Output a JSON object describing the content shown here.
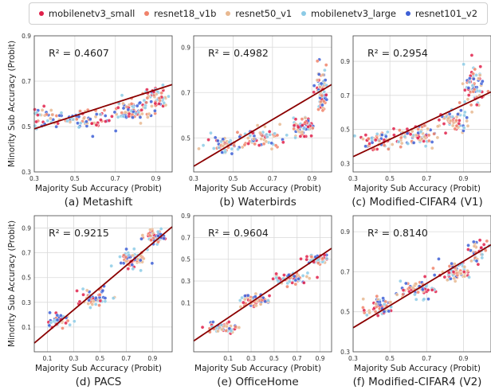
{
  "legend": [
    {
      "name": "mobilenetv3_small",
      "color": "#e0204a"
    },
    {
      "name": "resnet18_v1b",
      "color": "#f0826a"
    },
    {
      "name": "resnet50_v1",
      "color": "#e8b890"
    },
    {
      "name": "mobilenetv3_large",
      "color": "#8ccbe6"
    },
    {
      "name": "resnet101_v2",
      "color": "#3d5fd6"
    }
  ],
  "fit_line_color": "#8b0000",
  "shared_ylabel": "Minority Sub Accuracy (Probit)",
  "chart_data": [
    {
      "type": "scatter",
      "caption": "(a) Metashift",
      "xlabel": "Majority Sub Accuracy (Probit)",
      "ylabel": "",
      "r2_text": "R² = 0.4607",
      "xlim": [
        0.3,
        0.98
      ],
      "ylim": [
        0.3,
        0.9
      ],
      "xticks": [
        0.3,
        0.5,
        0.7,
        0.9
      ],
      "yticks": [
        0.3,
        0.5,
        0.7,
        0.9
      ],
      "fit": [
        [
          0.3,
          0.49
        ],
        [
          0.98,
          0.685
        ]
      ],
      "cloud": [
        [
          0.34,
          0.54,
          0.08,
          0.035,
          45
        ],
        [
          0.55,
          0.53,
          0.1,
          0.035,
          60
        ],
        [
          0.78,
          0.57,
          0.09,
          0.035,
          70
        ],
        [
          0.9,
          0.63,
          0.05,
          0.045,
          55
        ]
      ],
      "grid": true
    },
    {
      "type": "scatter",
      "caption": "(b) Waterbirds",
      "xlabel": "Majority Sub Accuracy (Probit)",
      "ylabel": "",
      "r2_text": "R² = 0.4982",
      "xlim": [
        0.3,
        1.0
      ],
      "ylim": [
        0.35,
        0.95
      ],
      "xticks": [
        0.3,
        0.5,
        0.7,
        0.9
      ],
      "yticks": [
        0.5,
        0.7,
        0.9
      ],
      "fit": [
        [
          0.3,
          0.375
        ],
        [
          1.0,
          0.735
        ]
      ],
      "cloud": [
        [
          0.45,
          0.47,
          0.08,
          0.035,
          45
        ],
        [
          0.65,
          0.5,
          0.09,
          0.035,
          60
        ],
        [
          0.85,
          0.55,
          0.05,
          0.04,
          60
        ],
        [
          0.95,
          0.7,
          0.03,
          0.08,
          70
        ]
      ],
      "grid": true
    },
    {
      "type": "scatter",
      "caption": "(c) Modified-CIFAR4 (V1)",
      "xlabel": "Majority Sub Accuracy (Probit)",
      "ylabel": "",
      "r2_text": "R² = 0.2954",
      "xlim": [
        0.3,
        1.05
      ],
      "ylim": [
        0.25,
        1.05
      ],
      "xticks": [
        0.3,
        0.5,
        0.7,
        0.9
      ],
      "yticks": [
        0.3,
        0.5,
        0.7,
        0.9
      ],
      "fit": [
        [
          0.3,
          0.34
        ],
        [
          1.05,
          0.72
        ]
      ],
      "cloud": [
        [
          0.45,
          0.44,
          0.09,
          0.05,
          55
        ],
        [
          0.65,
          0.47,
          0.09,
          0.05,
          65
        ],
        [
          0.85,
          0.55,
          0.07,
          0.05,
          60
        ],
        [
          0.95,
          0.75,
          0.05,
          0.12,
          70
        ]
      ],
      "grid": true
    },
    {
      "type": "scatter",
      "caption": "(d) PACS",
      "xlabel": "Majority Sub Accuracy (Probit)",
      "ylabel": "",
      "r2_text": "R² = 0.9215",
      "xlim": [
        0.0,
        1.05
      ],
      "ylim": [
        -0.1,
        1.0
      ],
      "xticks": [
        0.1,
        0.3,
        0.5,
        0.7,
        0.9
      ],
      "yticks": [
        0.1,
        0.3,
        0.5,
        0.7,
        0.9
      ],
      "fit": [
        [
          0.0,
          -0.03
        ],
        [
          1.05,
          0.91
        ]
      ],
      "cloud": [
        [
          0.18,
          0.15,
          0.08,
          0.045,
          45
        ],
        [
          0.45,
          0.33,
          0.1,
          0.06,
          50
        ],
        [
          0.75,
          0.65,
          0.1,
          0.06,
          60
        ],
        [
          0.92,
          0.83,
          0.07,
          0.05,
          50
        ]
      ],
      "grid": true
    },
    {
      "type": "scatter",
      "caption": "(e) OfficeHome",
      "xlabel": "Majority Sub Accuracy (Probit)",
      "ylabel": "",
      "r2_text": "R² = 0.9604",
      "xlim": [
        -0.2,
        1.0
      ],
      "ylim": [
        -0.35,
        0.9
      ],
      "xticks": [
        0.1,
        0.3,
        0.5,
        0.7,
        0.9
      ],
      "yticks": [
        0.1,
        0.3,
        0.5,
        0.7,
        0.9
      ],
      "fit": [
        [
          -0.2,
          -0.25
        ],
        [
          1.0,
          0.6
        ]
      ],
      "cloud": [
        [
          0.05,
          -0.13,
          0.12,
          0.04,
          60
        ],
        [
          0.35,
          0.12,
          0.12,
          0.045,
          60
        ],
        [
          0.65,
          0.33,
          0.12,
          0.045,
          60
        ],
        [
          0.88,
          0.5,
          0.08,
          0.04,
          45
        ]
      ],
      "grid": true
    },
    {
      "type": "scatter",
      "caption": "(f) Modified-CIFAR4 (V2)",
      "xlabel": "Majority Sub Accuracy (Probit)",
      "ylabel": "",
      "r2_text": "R² = 0.8140",
      "xlim": [
        0.3,
        1.05
      ],
      "ylim": [
        0.3,
        0.98
      ],
      "xticks": [
        0.3,
        0.5,
        0.7,
        0.9
      ],
      "yticks": [
        0.3,
        0.5,
        0.7,
        0.9
      ],
      "fit": [
        [
          0.3,
          0.42
        ],
        [
          1.05,
          0.835
        ]
      ],
      "cloud": [
        [
          0.45,
          0.52,
          0.07,
          0.04,
          55
        ],
        [
          0.65,
          0.61,
          0.08,
          0.04,
          65
        ],
        [
          0.85,
          0.7,
          0.08,
          0.04,
          65
        ],
        [
          0.98,
          0.8,
          0.04,
          0.05,
          40
        ]
      ],
      "grid": true
    }
  ]
}
